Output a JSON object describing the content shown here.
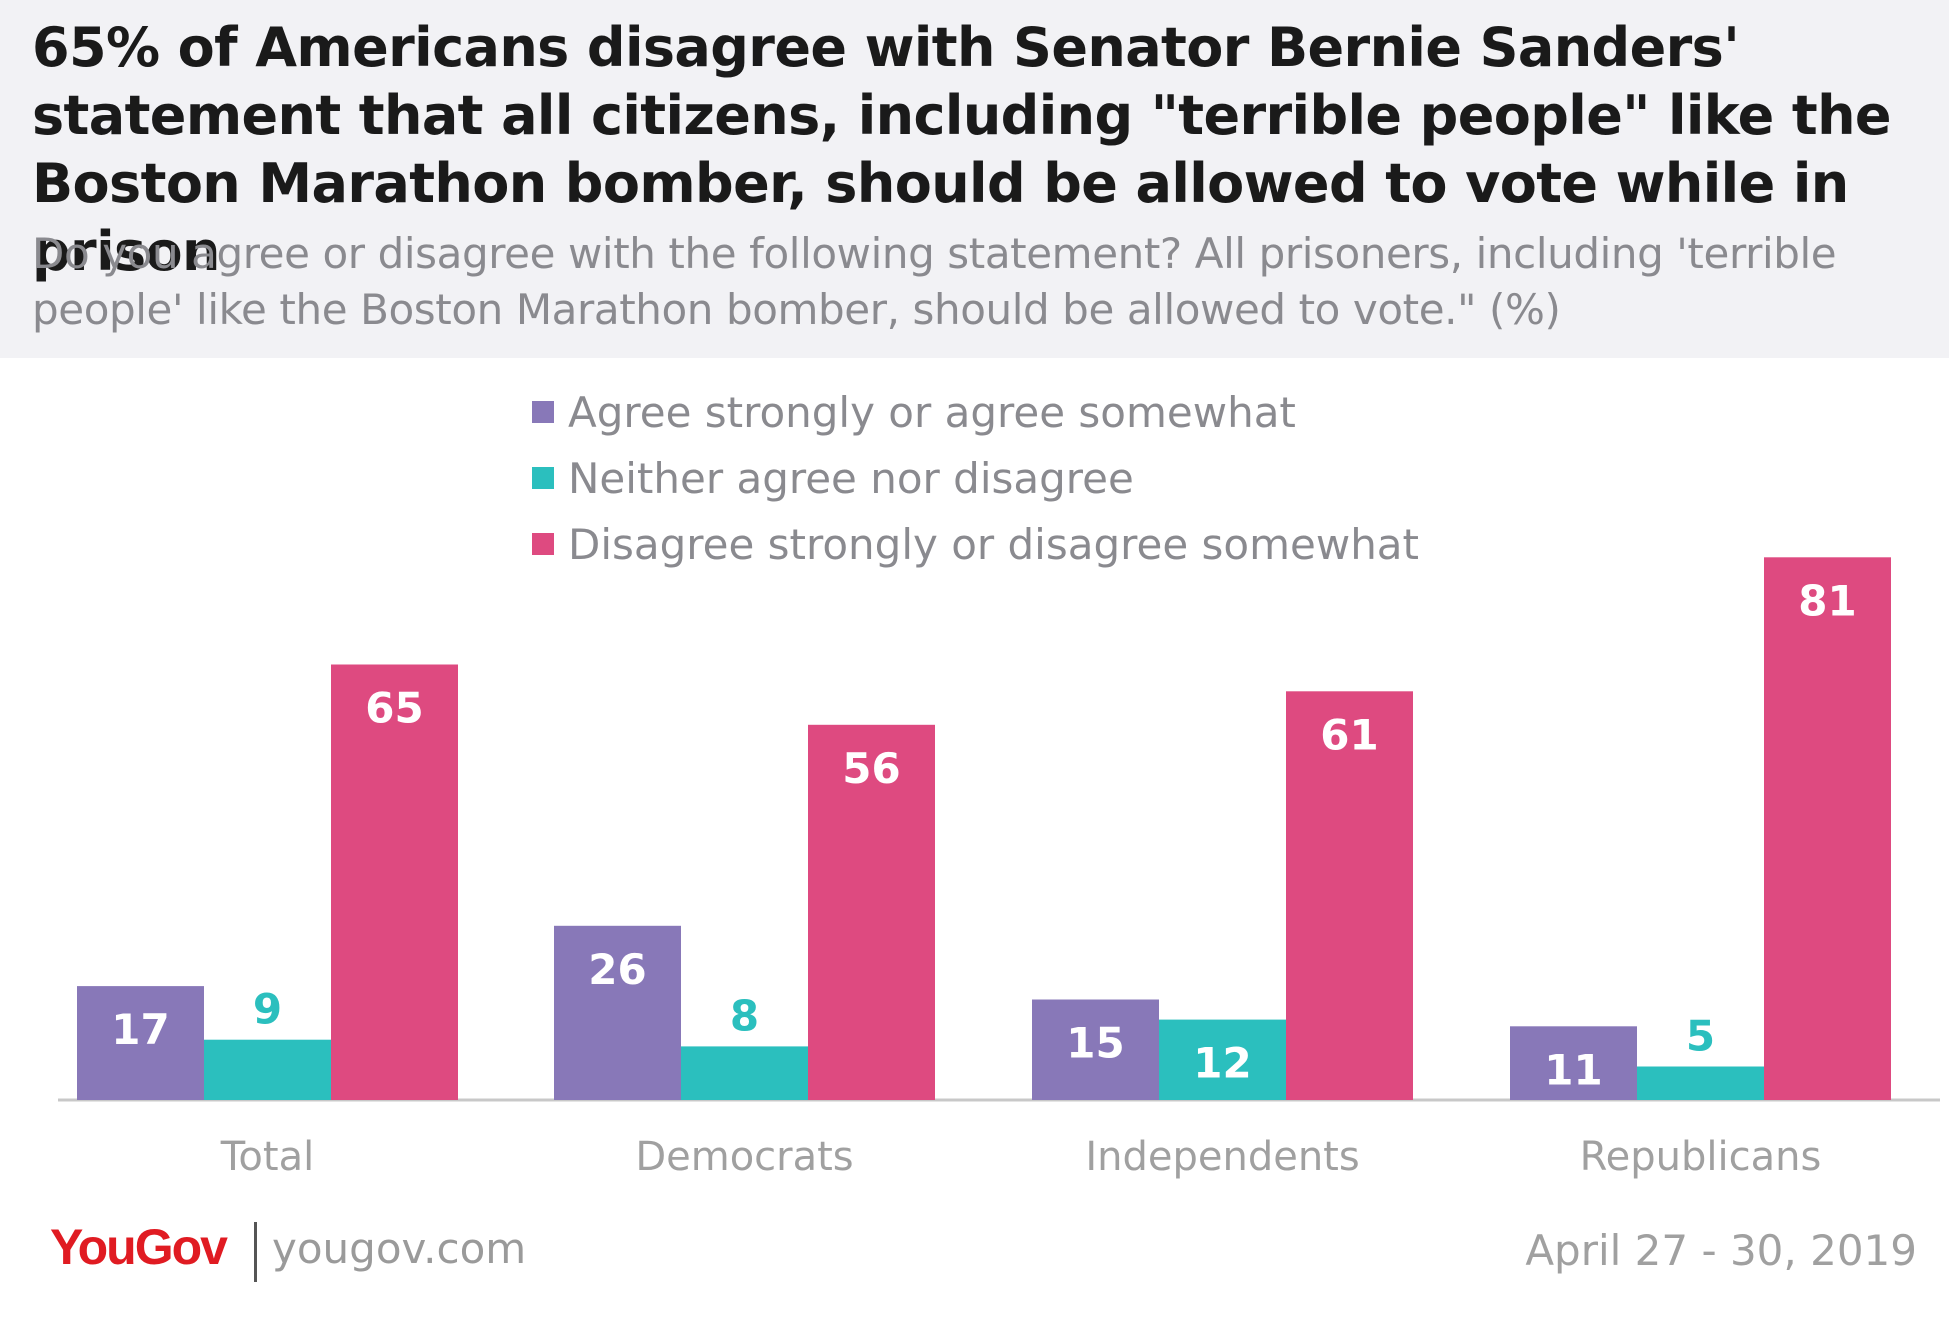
{
  "header": {
    "title": "65% of Americans disagree with Senator Bernie Sanders' statement that all citizens, including \"terrible people\" like the Boston Marathon bomber, should be allowed to vote while in prison",
    "subtitle": "Do you agree or disagree with the following statement? All prisoners, including 'terrible people' like the Boston Marathon bomber, should be allowed to vote.\" (%)"
  },
  "chart_data": {
    "type": "bar",
    "title": "65% of Americans disagree with Senator Bernie Sanders' statement that all citizens, including \"terrible people\" like the Boston Marathon bomber, should be allowed to vote while in prison",
    "xlabel": "",
    "ylabel": "",
    "ylim": [
      0,
      100
    ],
    "legend_position": "top",
    "categories": [
      "Total",
      "Democrats",
      "Independents",
      "Republicans"
    ],
    "series": [
      {
        "name": "Agree strongly or agree somewhat",
        "color": "#8878b8",
        "label_color": "#8878b8",
        "values": [
          17,
          26,
          15,
          11
        ]
      },
      {
        "name": "Neither agree nor disagree",
        "color": "#2bbfbe",
        "label_color": "#2bbfbe",
        "values": [
          9,
          8,
          12,
          5
        ]
      },
      {
        "name": "Disagree strongly or disagree somewhat",
        "color": "#de4a80",
        "label_color": "#de4a80",
        "values": [
          65,
          56,
          61,
          81
        ]
      }
    ]
  },
  "footer": {
    "logo_you": "You",
    "logo_gov": "Gov",
    "site": "yougov.com",
    "date": "April 27 - 30, 2019"
  },
  "colors": {
    "header_bg": "#f2f2f5",
    "brand_red": "#e01b22",
    "axis": "#c8c8c8"
  }
}
